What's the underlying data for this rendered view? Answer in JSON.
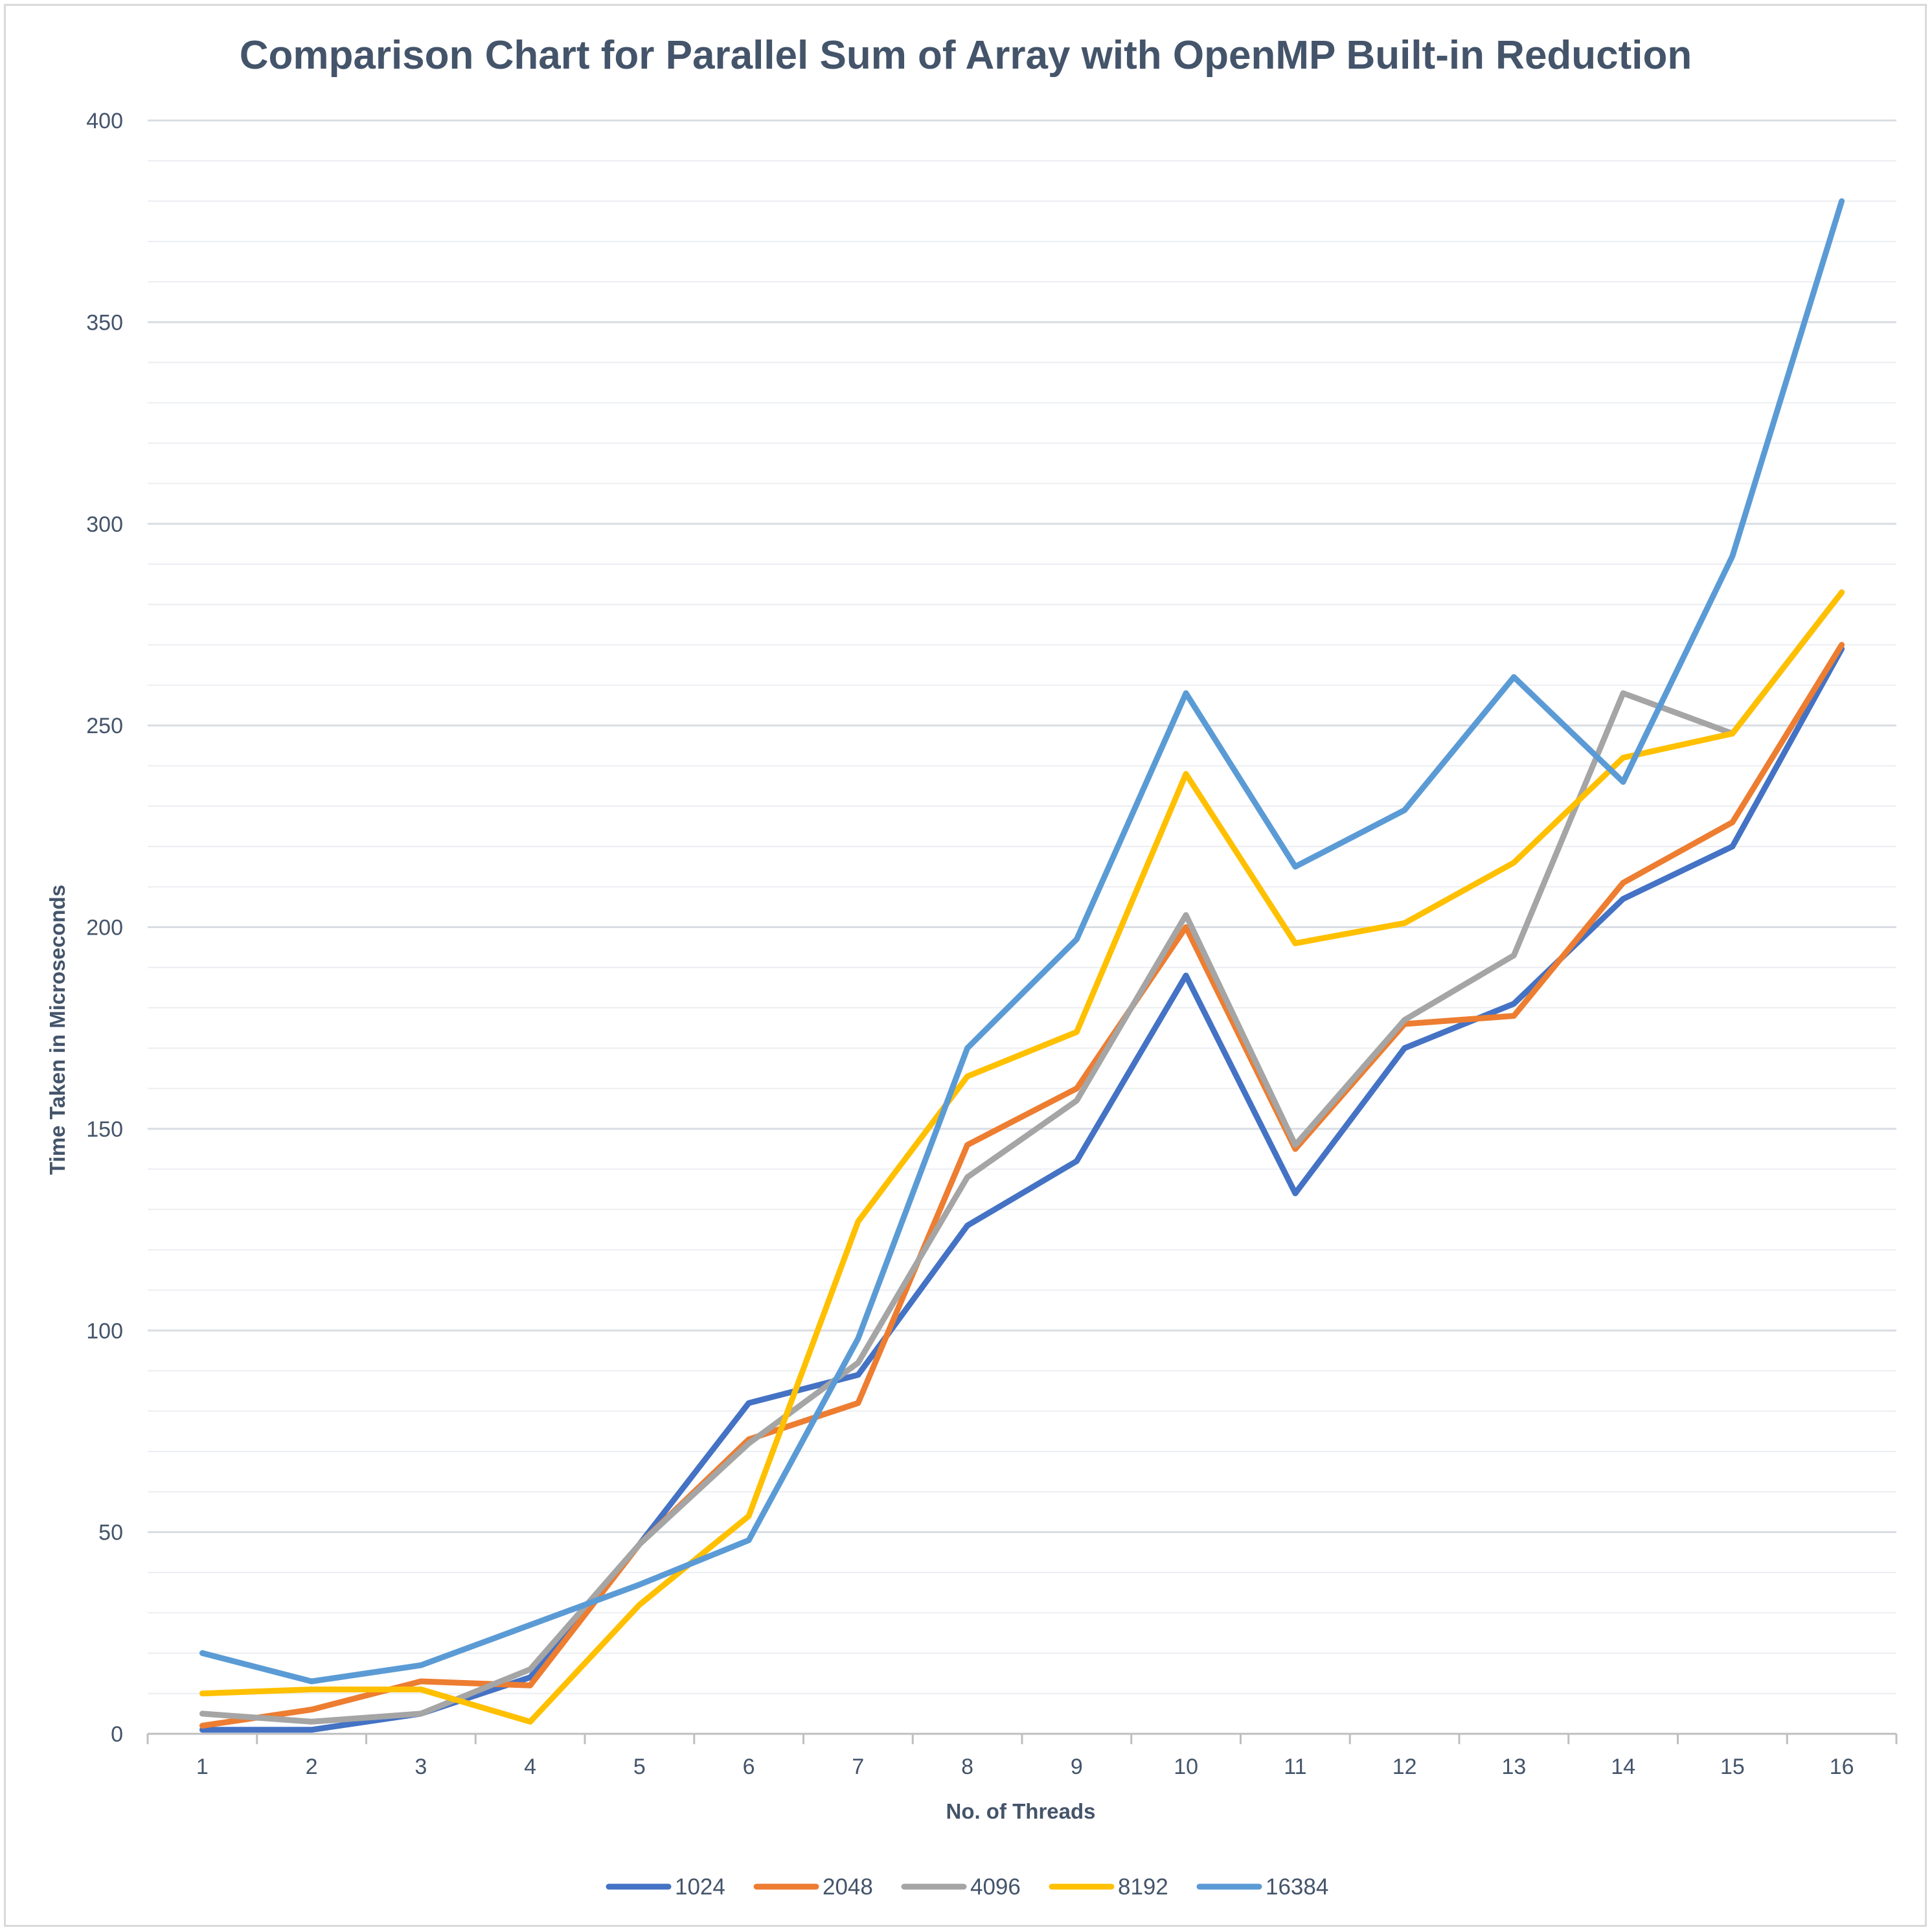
{
  "chart_data": {
    "type": "line",
    "title": "Comparison Chart for Parallel Sum of Array with OpenMP Built-in Reduction",
    "xlabel": "No. of Threads",
    "ylabel": "Time Taken in Microseconds",
    "categories": [
      "1",
      "2",
      "3",
      "4",
      "5",
      "6",
      "7",
      "8",
      "9",
      "10",
      "11",
      "12",
      "13",
      "14",
      "15",
      "16"
    ],
    "ylim": [
      0,
      400
    ],
    "yticks": [
      "0",
      "50",
      "100",
      "150",
      "200",
      "250",
      "300",
      "350",
      "400"
    ],
    "grid": true,
    "legend_position": "bottom",
    "series": [
      {
        "name": "1024",
        "color": "#4472c4",
        "values": [
          1,
          1,
          5,
          14,
          47,
          82,
          89,
          126,
          142,
          188,
          134,
          170,
          181,
          207,
          220,
          269
        ]
      },
      {
        "name": "2048",
        "color": "#ed7d31",
        "values": [
          2,
          6,
          13,
          12,
          47,
          73,
          82,
          146,
          160,
          200,
          145,
          176,
          178,
          211,
          226,
          270
        ]
      },
      {
        "name": "4096",
        "color": "#a5a5a5",
        "values": [
          5,
          3,
          5,
          16,
          47,
          72,
          92,
          138,
          157,
          203,
          146,
          177,
          193,
          258,
          248,
          283
        ]
      },
      {
        "name": "8192",
        "color": "#ffc000",
        "values": [
          10,
          11,
          11,
          3,
          32,
          54,
          127,
          163,
          174,
          238,
          196,
          201,
          216,
          242,
          248,
          283
        ]
      },
      {
        "name": "16384",
        "color": "#5b9bd5",
        "values": [
          20,
          13,
          17,
          27,
          37,
          48,
          98,
          170,
          197,
          258,
          215,
          229,
          262,
          236,
          292,
          380
        ]
      }
    ]
  }
}
